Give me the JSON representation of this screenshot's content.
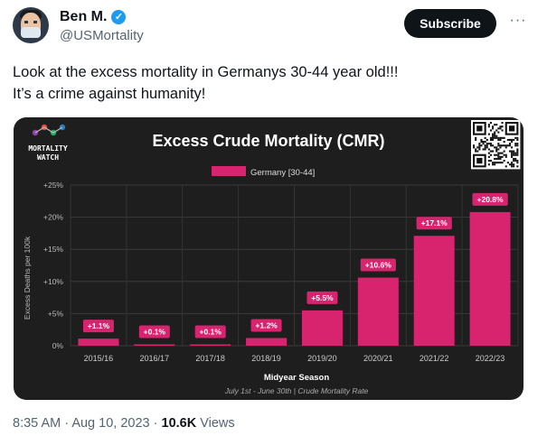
{
  "author": {
    "name": "Ben M.",
    "handle": "@USMortality",
    "verified_icon": "verified-check-icon"
  },
  "actions": {
    "subscribe_label": "Subscribe",
    "more_label": "···"
  },
  "tweet": {
    "lines": [
      "Look at the excess mortality in Germanys 30-44 year old!!!",
      "It’s a crime against humanity!"
    ]
  },
  "media": {
    "logo_lines": [
      "MORTALITY",
      "WATCH"
    ],
    "chart_data": {
      "type": "bar",
      "title": "Excess Crude Mortality (CMR)",
      "legend": [
        "Germany [30-44]"
      ],
      "legend_position": "top-center",
      "categories": [
        "2015/16",
        "2016/17",
        "2017/18",
        "2018/19",
        "2019/20",
        "2020/21",
        "2021/22",
        "2022/23"
      ],
      "series": [
        {
          "name": "Germany [30-44]",
          "values": [
            1.1,
            0.1,
            0.1,
            1.2,
            5.5,
            10.6,
            17.1,
            20.8
          ]
        }
      ],
      "data_labels": [
        "+1.1%",
        "+0.1%",
        "+0.1%",
        "+1.2%",
        "+5.5%",
        "+10.6%",
        "+17.1%",
        "+20.8%"
      ],
      "xlabel": "Midyear Season",
      "ylabel": "Excess Deaths per 100k",
      "yticks": [
        0,
        5,
        10,
        15,
        20,
        25
      ],
      "ytick_labels": [
        "0%",
        "+5%",
        "+10%",
        "+15%",
        "+20%",
        "+25%"
      ],
      "ylim": [
        0,
        25
      ],
      "grid": true,
      "caption": "July 1st - June 30th | Crude Mortality Rate",
      "bar_color": "#d8246f"
    }
  },
  "footer": {
    "time": "8:35 AM",
    "separator": "·",
    "date": "Aug 10, 2023",
    "views_count": "10.6K",
    "views_label": "Views"
  }
}
